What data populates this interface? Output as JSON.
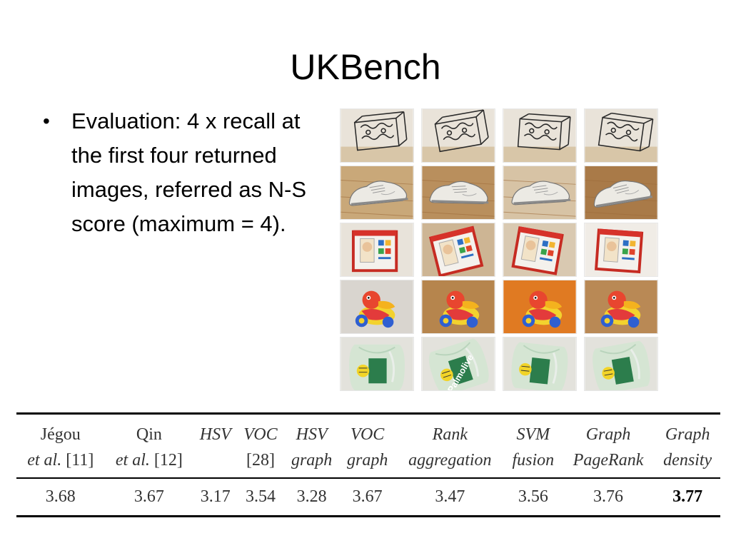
{
  "slide": {
    "title": "UKBench",
    "bullet": "Evaluation: 4 x recall at the first four returned images, referred as N-S score (maximum = 4)."
  },
  "grid": {
    "rows": [
      {
        "object": "metal-stand",
        "tiles": [
          {
            "name": "stand-1"
          },
          {
            "name": "stand-2"
          },
          {
            "name": "stand-3"
          },
          {
            "name": "stand-4"
          }
        ]
      },
      {
        "object": "sneaker",
        "tiles": [
          {
            "name": "shoe-1"
          },
          {
            "name": "shoe-2"
          },
          {
            "name": "shoe-3"
          },
          {
            "name": "shoe-4"
          }
        ]
      },
      {
        "object": "toy-box",
        "tiles": [
          {
            "name": "box-1"
          },
          {
            "name": "box-2"
          },
          {
            "name": "box-3"
          },
          {
            "name": "box-4"
          }
        ]
      },
      {
        "object": "duck-toy",
        "tiles": [
          {
            "name": "duck-1"
          },
          {
            "name": "duck-2"
          },
          {
            "name": "duck-3"
          },
          {
            "name": "duck-4"
          }
        ]
      },
      {
        "object": "palmolive-bottle",
        "tiles": [
          {
            "name": "bottle-1",
            "label": ""
          },
          {
            "name": "bottle-2",
            "label": "Palmolive"
          },
          {
            "name": "bottle-3",
            "label": ""
          },
          {
            "name": "bottle-4",
            "label": ""
          }
        ]
      }
    ]
  },
  "table": {
    "columns": [
      {
        "l1": "Jégou",
        "l1_italic": false,
        "l2": "et al.",
        "l2_ref": " [11]"
      },
      {
        "l1": "Qin",
        "l1_italic": false,
        "l2": "et al.",
        "l2_ref": " [12]"
      },
      {
        "l1": "HSV",
        "l1_italic": true,
        "l2": "",
        "l2_ref": ""
      },
      {
        "l1": "VOC",
        "l1_italic": true,
        "l2": "",
        "l2_ref": "[28]"
      },
      {
        "l1": "HSV",
        "l1_italic": true,
        "l2": "graph",
        "l2_ref": ""
      },
      {
        "l1": "VOC",
        "l1_italic": true,
        "l2": "graph",
        "l2_ref": ""
      },
      {
        "l1": "Rank",
        "l1_italic": true,
        "l2": "aggregation",
        "l2_ref": ""
      },
      {
        "l1": "SVM",
        "l1_italic": true,
        "l2": "fusion",
        "l2_ref": ""
      },
      {
        "l1": "Graph",
        "l1_italic": true,
        "l2": "PageRank",
        "l2_ref": ""
      },
      {
        "l1": "Graph",
        "l1_italic": true,
        "l2": "density",
        "l2_ref": ""
      }
    ],
    "scores": [
      "3.68",
      "3.67",
      "3.17",
      "3.54",
      "3.28",
      "3.67",
      "3.47",
      "3.56",
      "3.76",
      "3.77"
    ],
    "best_index": 9
  }
}
